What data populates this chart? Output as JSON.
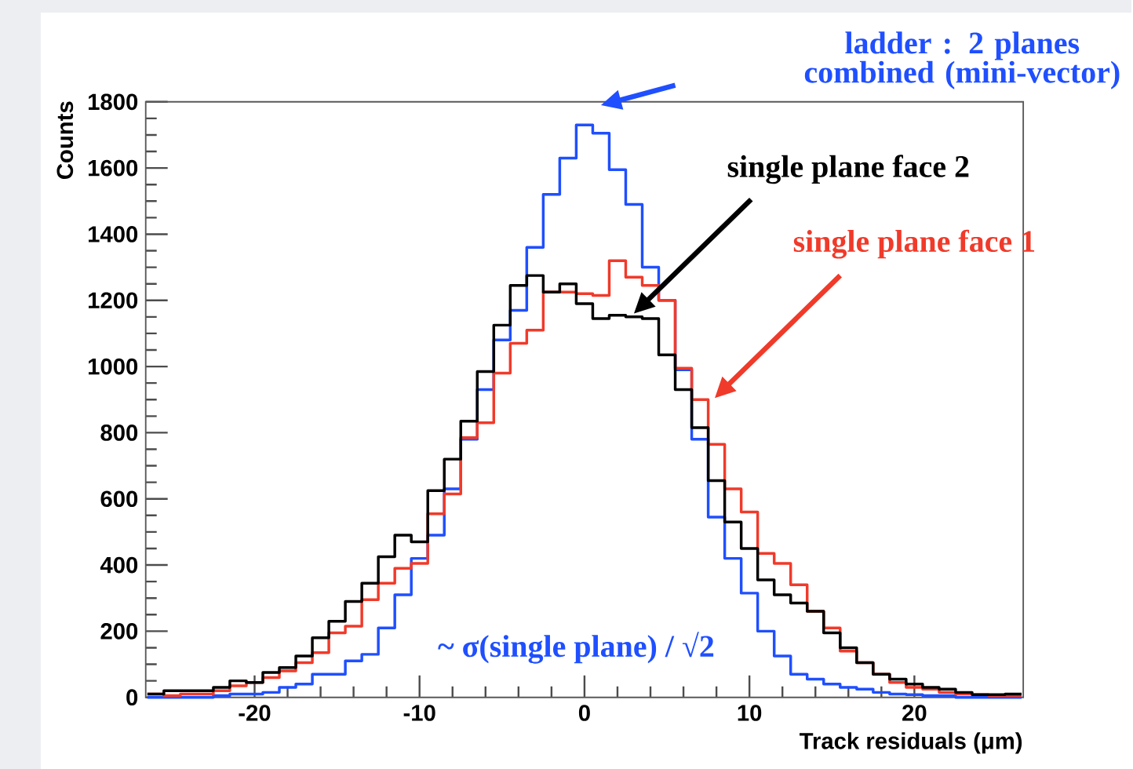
{
  "chart_data": {
    "type": "histogram",
    "xlabel": "Track residuals (μm)",
    "ylabel": "Counts",
    "bins": [
      -26.5,
      -25.5,
      -24.5,
      -23.5,
      -22.5,
      -21.5,
      -20.5,
      -19.5,
      -18.5,
      -17.5,
      -16.5,
      -15.5,
      -14.5,
      -13.5,
      -12.5,
      -11.5,
      -10.5,
      -9.5,
      -8.5,
      -7.5,
      -6.5,
      -5.5,
      -4.5,
      -3.5,
      -2.5,
      -1.5,
      -0.5,
      0.5,
      1.5,
      2.5,
      3.5,
      4.5,
      5.5,
      6.5,
      7.5,
      8.5,
      9.5,
      10.5,
      11.5,
      12.5,
      13.5,
      14.5,
      15.5,
      16.5,
      17.5,
      18.5,
      19.5,
      20.5,
      21.5,
      22.5,
      23.5,
      24.5,
      25.5,
      26.5
    ],
    "series": [
      {
        "name": "ladder : 2 planes combined (mini-vector)",
        "color": "#1f4fff",
        "values": [
          0,
          0,
          0,
          0,
          5,
          10,
          10,
          15,
          30,
          40,
          70,
          70,
          110,
          130,
          210,
          310,
          420,
          490,
          630,
          780,
          930,
          1080,
          1170,
          1360,
          1520,
          1630,
          1730,
          1705,
          1595,
          1490,
          1300,
          1200,
          990,
          780,
          545,
          420,
          315,
          200,
          125,
          70,
          55,
          40,
          30,
          25,
          15,
          10,
          8,
          5,
          5,
          0,
          0,
          0,
          0
        ]
      },
      {
        "name": "single plane face 1",
        "color": "#f03a2a",
        "values": [
          10,
          5,
          10,
          10,
          20,
          35,
          45,
          60,
          80,
          105,
          135,
          195,
          215,
          295,
          345,
          390,
          405,
          555,
          615,
          785,
          830,
          980,
          1070,
          1110,
          1225,
          1225,
          1220,
          1215,
          1320,
          1270,
          1245,
          1200,
          995,
          900,
          765,
          630,
          560,
          435,
          405,
          340,
          260,
          210,
          140,
          105,
          70,
          45,
          30,
          25,
          15,
          10,
          8,
          5,
          5
        ]
      },
      {
        "name": "single plane face 2",
        "color": "#000000",
        "values": [
          10,
          20,
          20,
          20,
          30,
          50,
          45,
          75,
          90,
          125,
          180,
          230,
          290,
          345,
          425,
          490,
          470,
          625,
          720,
          835,
          985,
          1125,
          1245,
          1275,
          1225,
          1250,
          1190,
          1145,
          1155,
          1150,
          1145,
          1035,
          930,
          815,
          655,
          530,
          450,
          355,
          310,
          285,
          260,
          195,
          150,
          105,
          70,
          55,
          40,
          30,
          25,
          15,
          8,
          8,
          10
        ]
      }
    ],
    "xlim": [
      -26.6,
      26.6
    ],
    "ylim": [
      0,
      1800
    ],
    "xticks": [
      -20,
      -10,
      0,
      10,
      20
    ],
    "yticks": [
      0,
      200,
      400,
      600,
      800,
      1000,
      1200,
      1400,
      1600,
      1800
    ],
    "annotations": [
      "~ σ(single plane) / √2"
    ],
    "grid": false
  }
}
